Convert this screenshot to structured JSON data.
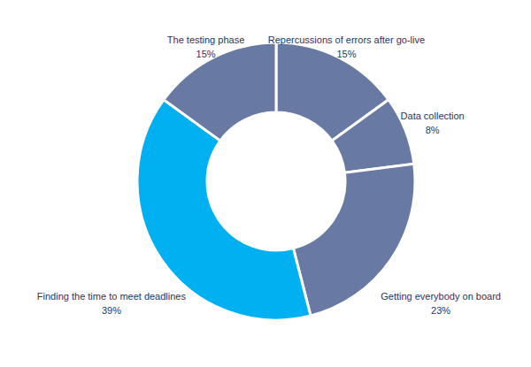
{
  "chart_data": {
    "type": "pie",
    "categories": [
      "Repercussions of errors after go-live",
      "Data collection",
      "Getting everybody on board",
      "Finding the time to meet deadlines",
      "The testing phase"
    ],
    "values": [
      15,
      8,
      23,
      39,
      15
    ],
    "value_labels": [
      "15%",
      "8%",
      "23%",
      "39%",
      "15%"
    ],
    "colors": [
      "#6879a3",
      "#6879a3",
      "#6879a3",
      "#00b0f0",
      "#6879a3"
    ],
    "data_labels": true
  }
}
